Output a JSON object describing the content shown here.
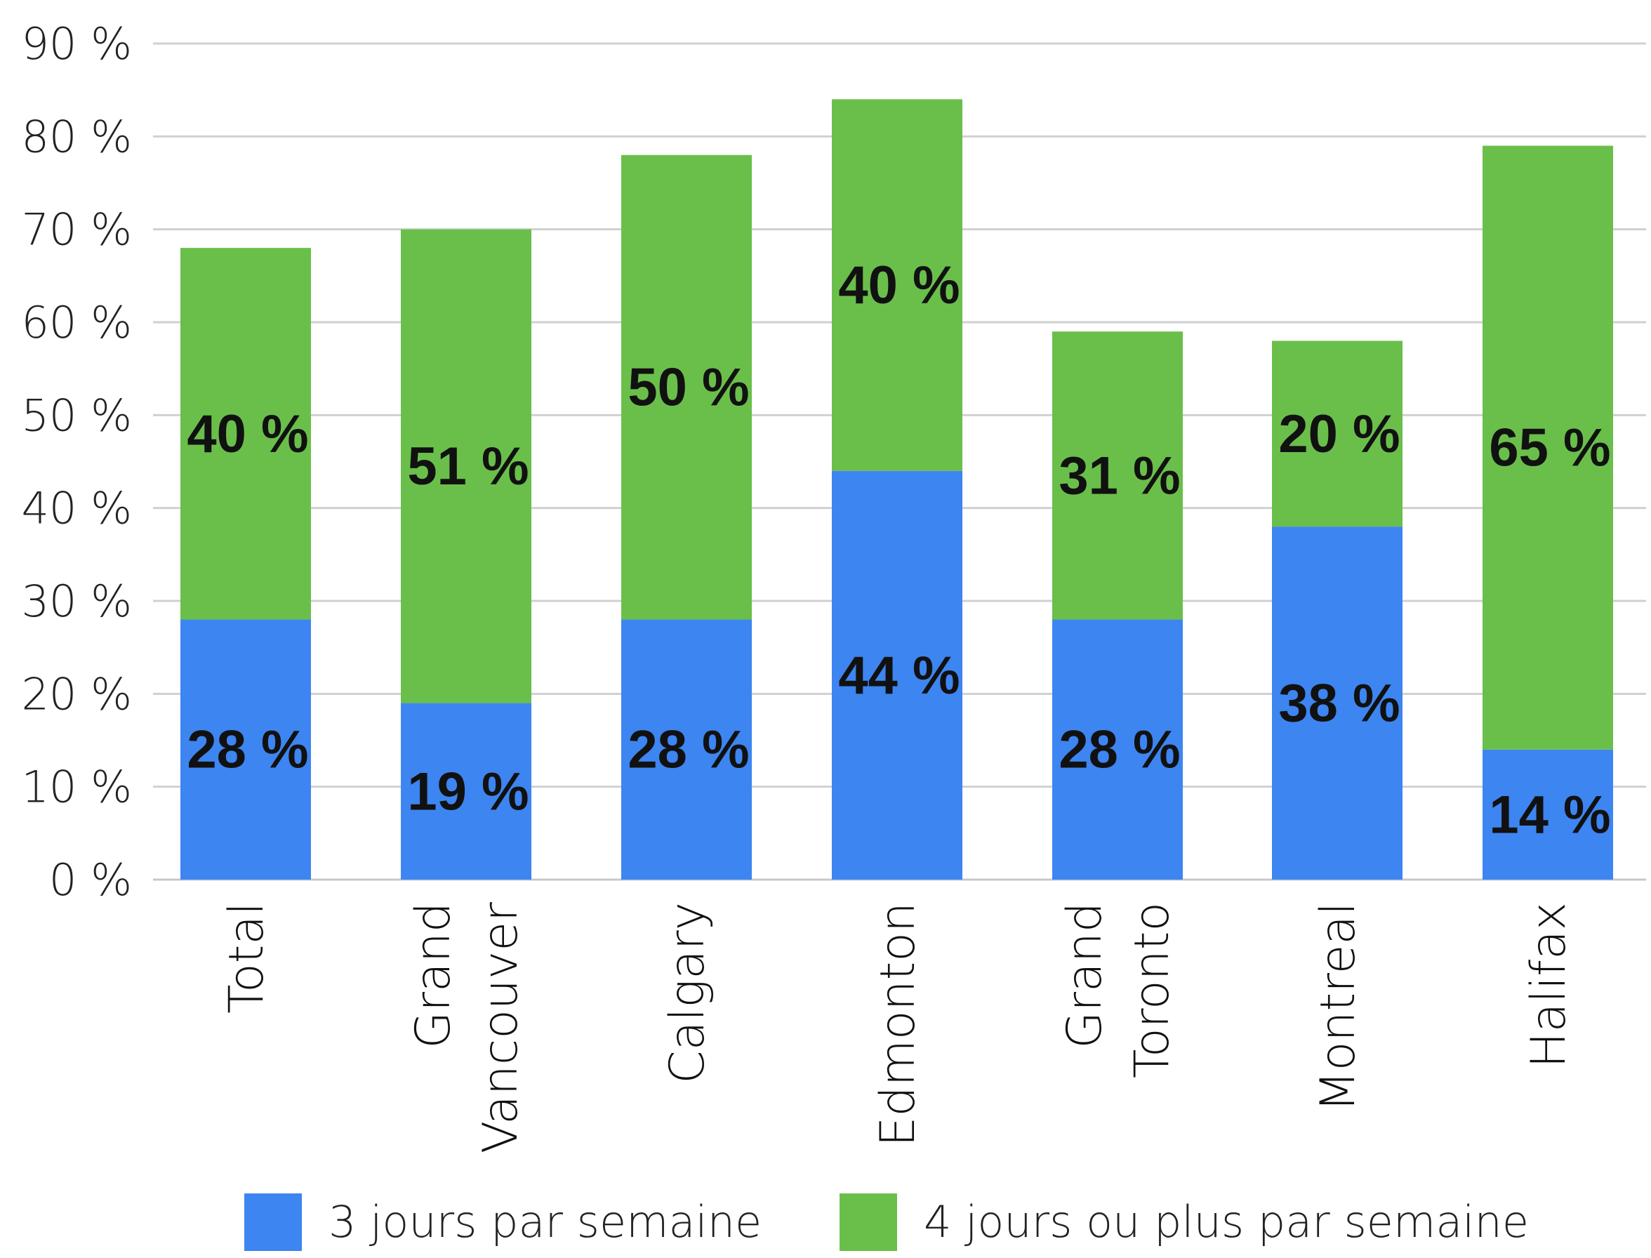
{
  "chart_data": {
    "type": "bar",
    "stacked": true,
    "categories": [
      [
        "Total"
      ],
      [
        "Grand",
        "Vancouver"
      ],
      [
        "Calgary"
      ],
      [
        "Edmonton"
      ],
      [
        "Grand",
        "Toronto"
      ],
      [
        "Montreal"
      ],
      [
        "Halifax"
      ]
    ],
    "series": [
      {
        "name": "3 jours par semaine",
        "color": "#3d85f0",
        "values": [
          28,
          19,
          28,
          44,
          28,
          38,
          14
        ],
        "labels": [
          "28 %",
          "19 %",
          "28 %",
          "44 %",
          "28 %",
          "38 %",
          "14 %"
        ]
      },
      {
        "name": "4 jours ou plus par semaine",
        "color": "#6abf4b",
        "values": [
          40,
          51,
          50,
          40,
          31,
          20,
          65
        ],
        "labels": [
          "40 %",
          "51 %",
          "50 %",
          "40 %",
          "31 %",
          "20 %",
          "65 %"
        ]
      }
    ],
    "ylim": [
      0,
      90
    ],
    "yticks": [
      0,
      10,
      20,
      30,
      40,
      50,
      60,
      70,
      80,
      90
    ],
    "ytick_labels": [
      "0 %",
      "10 %",
      "20 %",
      "30 %",
      "40 %",
      "50 %",
      "60 %",
      "70 %",
      "80 %",
      "90 %"
    ],
    "grid": true,
    "legend_position": "bottom",
    "title": "",
    "xlabel": "",
    "ylabel": ""
  }
}
